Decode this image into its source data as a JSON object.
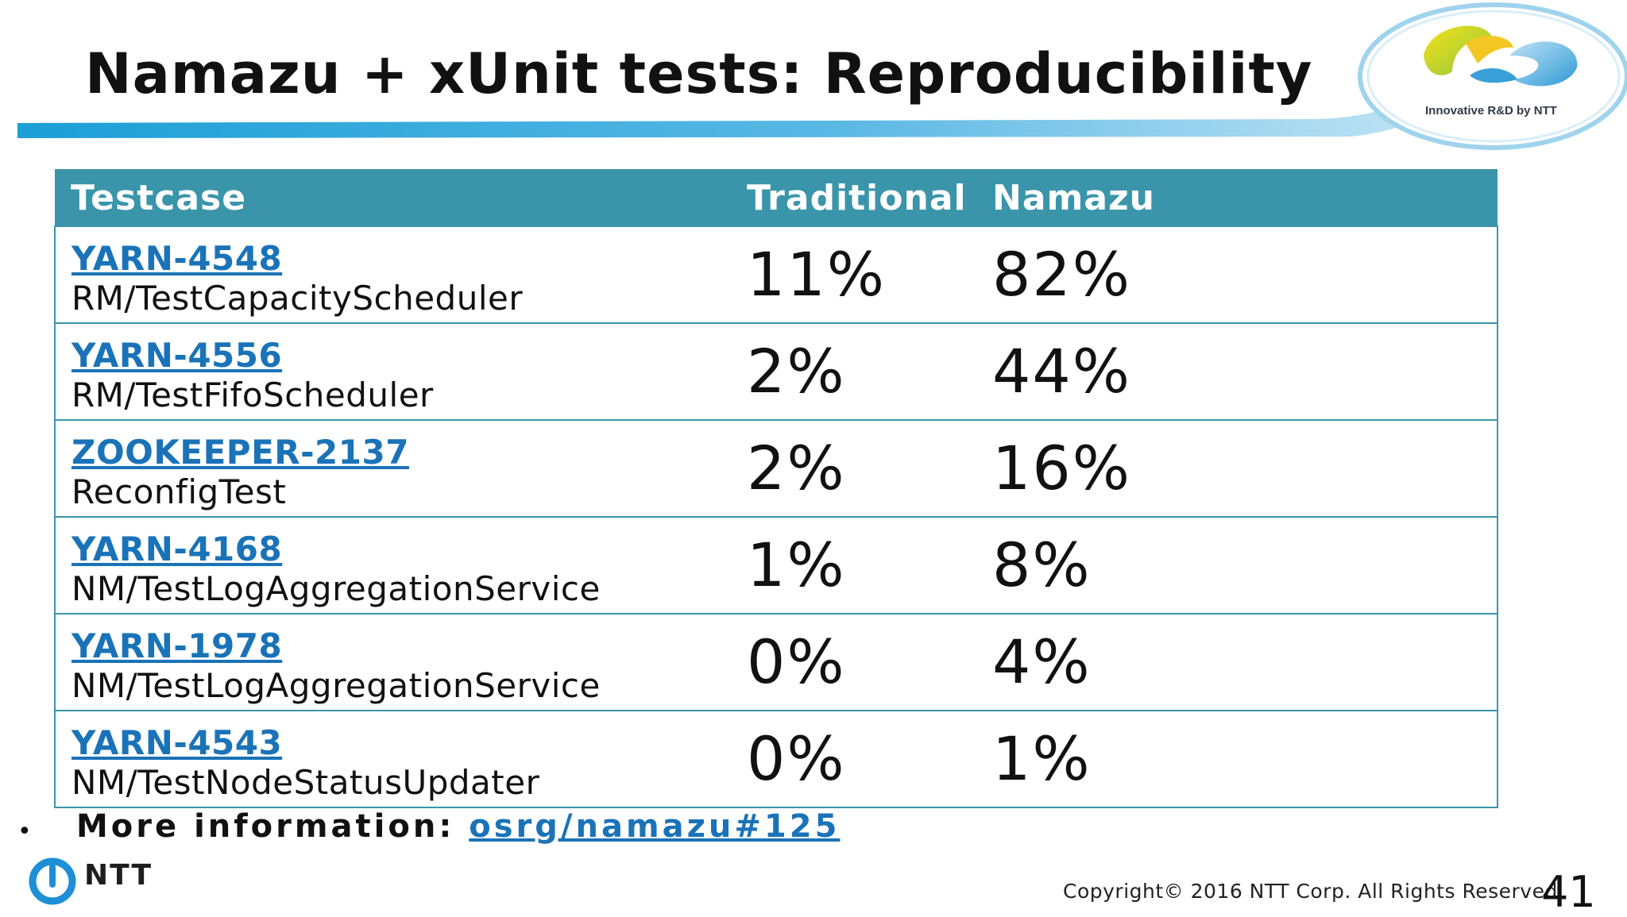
{
  "slide": {
    "title": "Namazu + xUnit tests: Reproducibility",
    "logo_tagline": "Innovative R&D by NTT"
  },
  "table": {
    "headers": [
      "Testcase",
      "Traditional",
      "Namazu"
    ],
    "rows": [
      {
        "issue": "YARN-4548",
        "test": "RM/TestCapacityScheduler",
        "traditional": "11%",
        "namazu": "82%"
      },
      {
        "issue": "YARN-4556",
        "test": "RM/TestFifoScheduler",
        "traditional": "2%",
        "namazu": "44%"
      },
      {
        "issue": "ZOOKEEPER-2137",
        "test": "ReconfigTest",
        "traditional": "2%",
        "namazu": "16%"
      },
      {
        "issue": "YARN-4168",
        "test": "NM/TestLogAggregationService",
        "traditional": "1%",
        "namazu": "8%"
      },
      {
        "issue": "YARN-1978",
        "test": "NM/TestLogAggregationService",
        "traditional": "0%",
        "namazu": "4%"
      },
      {
        "issue": "YARN-4543",
        "test": "NM/TestNodeStatusUpdater",
        "traditional": "0%",
        "namazu": "1%"
      }
    ]
  },
  "footer_note": {
    "bullet": "•",
    "label": "More information: ",
    "link_text": "osrg/namazu#125"
  },
  "footer": {
    "brand": "NTT",
    "copyright": "Copyright© 2016  NTT Corp. All Rights Reserved.",
    "page_number": "41"
  },
  "colors": {
    "header_teal": "#3a95aa",
    "link_blue": "#1a73b8"
  }
}
